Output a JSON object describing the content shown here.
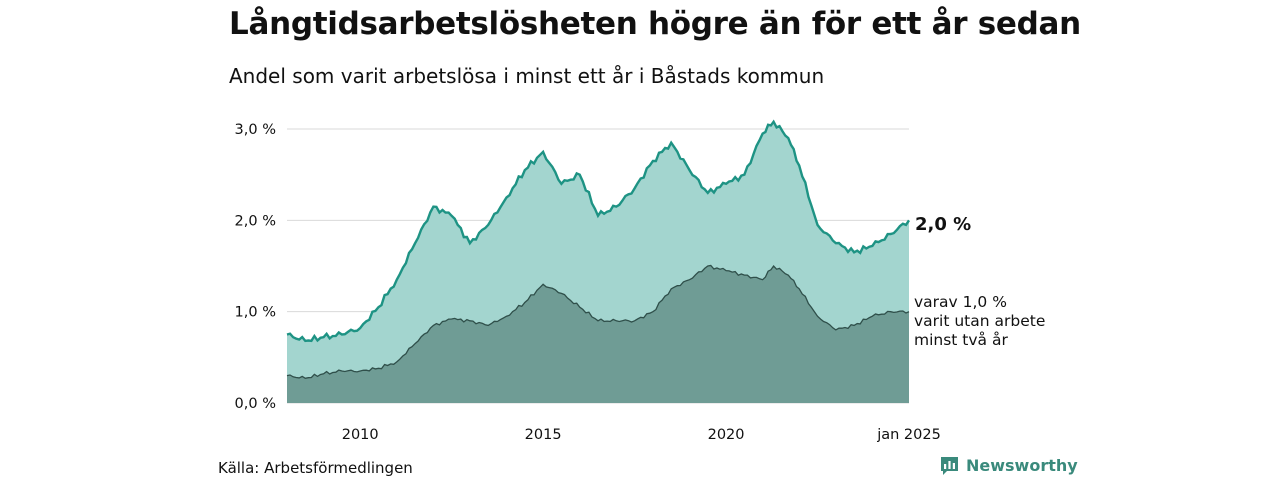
{
  "title": "Långtidsarbetslösheten högre än för ett år sedan",
  "subtitle": "Andel som varit arbetslösa i minst ett år i Båstads kommun",
  "source": "Källa: Arbetsförmedlingen",
  "brand": "Newsworthy",
  "colors": {
    "total_line": "#1e9384",
    "total_fill": "#a3d5cf",
    "sub_fill": "#6f9c95",
    "sub_line": "#2f4f4a"
  },
  "chart_data": {
    "type": "area",
    "x_unit": "year",
    "x_ticks": [
      {
        "value": 2010,
        "label": "2010"
      },
      {
        "value": 2015,
        "label": "2015"
      },
      {
        "value": 2020,
        "label": "2020"
      },
      {
        "value": 2025,
        "label": "jan 2025"
      }
    ],
    "y_ticks": [
      {
        "value": 0,
        "label": "0,0 %"
      },
      {
        "value": 1,
        "label": "1,0 %"
      },
      {
        "value": 2,
        "label": "2,0 %"
      },
      {
        "value": 3,
        "label": "3,0 %"
      }
    ],
    "xlim": [
      2008.0,
      2025.0
    ],
    "ylim": [
      0,
      3.0
    ],
    "grid": "horizontal",
    "series": [
      {
        "label": "2,0 %",
        "x": [
          2008.0,
          2008.5,
          2009.0,
          2009.5,
          2010.0,
          2010.5,
          2011.0,
          2011.5,
          2012.0,
          2012.5,
          2013.0,
          2013.5,
          2014.0,
          2014.5,
          2015.0,
          2015.5,
          2016.0,
          2016.5,
          2017.0,
          2017.5,
          2018.0,
          2018.5,
          2019.0,
          2019.5,
          2020.0,
          2020.5,
          2021.0,
          2021.3,
          2021.7,
          2022.0,
          2022.5,
          2023.0,
          2023.5,
          2024.0,
          2024.5,
          2025.0
        ],
        "values": [
          0.75,
          0.68,
          0.72,
          0.75,
          0.82,
          1.05,
          1.35,
          1.75,
          2.15,
          2.05,
          1.75,
          1.95,
          2.25,
          2.55,
          2.75,
          2.4,
          2.5,
          2.05,
          2.15,
          2.35,
          2.65,
          2.85,
          2.55,
          2.3,
          2.4,
          2.5,
          2.95,
          3.08,
          2.9,
          2.6,
          1.95,
          1.75,
          1.65,
          1.72,
          1.85,
          2.0
        ]
      },
      {
        "label": "varav 1,0 % varit utan arbete minst två år",
        "x": [
          2008.0,
          2008.5,
          2009.0,
          2009.5,
          2010.0,
          2010.5,
          2011.0,
          2011.5,
          2012.0,
          2012.5,
          2013.0,
          2013.5,
          2014.0,
          2014.5,
          2015.0,
          2015.5,
          2016.0,
          2016.5,
          2017.0,
          2017.5,
          2018.0,
          2018.5,
          2019.0,
          2019.5,
          2020.0,
          2020.5,
          2021.0,
          2021.3,
          2021.7,
          2022.0,
          2022.5,
          2023.0,
          2023.5,
          2024.0,
          2024.5,
          2025.0
        ],
        "values": [
          0.3,
          0.27,
          0.32,
          0.35,
          0.35,
          0.38,
          0.45,
          0.65,
          0.85,
          0.92,
          0.9,
          0.85,
          0.95,
          1.1,
          1.3,
          1.2,
          1.05,
          0.9,
          0.9,
          0.9,
          1.0,
          1.25,
          1.35,
          1.5,
          1.45,
          1.4,
          1.35,
          1.5,
          1.4,
          1.25,
          0.95,
          0.8,
          0.85,
          0.95,
          1.0,
          1.0
        ]
      }
    ]
  }
}
